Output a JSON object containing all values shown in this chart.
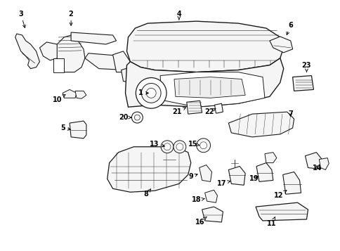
{
  "bg_color": "#ffffff",
  "line_color": "#1a1a1a",
  "figsize": [
    4.85,
    3.57
  ],
  "dpi": 100,
  "parts": {
    "part3_label": "3",
    "part2_label": "2",
    "part4_label": "4",
    "part6_label": "6",
    "part23_label": "23",
    "part10_label": "10",
    "part20_label": "20",
    "part1_label": "1",
    "part21_label": "21",
    "part22_label": "22",
    "part7_label": "7",
    "part5_label": "5",
    "part13_label": "13",
    "part15_label": "15",
    "part9_label": "9",
    "part8_label": "8",
    "part17_label": "17",
    "part18_label": "18",
    "part16_label": "16",
    "part11_label": "11",
    "part19_label": "19",
    "part12_label": "12",
    "part14_label": "14"
  }
}
